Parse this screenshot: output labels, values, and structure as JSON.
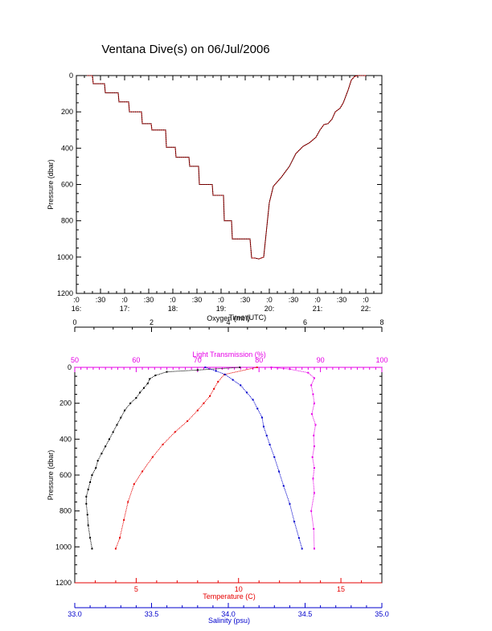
{
  "title": "Ventana Dive(s) on 06/Jul/2006",
  "colors": {
    "temperature": "#e60000",
    "salinity": "#0000cc",
    "light": "#e600e6",
    "oxygen": "#000000",
    "dive_track_line": "#cc0000",
    "dive_track_points": "#000000",
    "axis": "#000000"
  },
  "chart_data": [
    {
      "type": "line",
      "title": "Ventana Dive(s) on 06/Jul/2006",
      "xlabel": "Time (UTC)",
      "ylabel": "Pressure (dbar)",
      "xlim": [
        "16:00",
        "22:20"
      ],
      "ylim": [
        1200,
        0
      ],
      "x_ticks_top": [
        ":0",
        ":30",
        ":0",
        ":30",
        ":0",
        ":30",
        ":0",
        ":30",
        ":0",
        ":30",
        ":0",
        ":30",
        ":0"
      ],
      "x_ticks_bottom": [
        "16:",
        "17:",
        "18:",
        "19:",
        "20:",
        "21:",
        "22:"
      ],
      "y_ticks": [
        "0",
        "200",
        "400",
        "600",
        "800",
        "1000",
        "1200"
      ],
      "series": [
        {
          "x": [
            "16:13",
            "16:20",
            "16:21",
            "16:35",
            "16:36",
            "16:52",
            "16:53",
            "17:05",
            "17:06",
            "17:21",
            "17:22",
            "17:33",
            "17:34",
            "17:51",
            "17:52",
            "18:03",
            "18:04",
            "18:20",
            "18:21",
            "18:32",
            "18:33",
            "18:49",
            "18:50",
            "19:03",
            "19:04",
            "19:13",
            "19:14",
            "19:36",
            "19:38",
            "19:42",
            "19:47",
            "19:53",
            "20:00",
            "20:05",
            "20:15",
            "20:25",
            "20:33",
            "20:42",
            "20:50",
            "20:58",
            "21:03",
            "21:08",
            "21:13",
            "21:18",
            "21:22",
            "21:28",
            "21:32",
            "21:38",
            "21:42",
            "21:46",
            "21:50",
            "22:00"
          ],
          "y": [
            0,
            0,
            45,
            45,
            95,
            95,
            145,
            145,
            200,
            200,
            265,
            265,
            300,
            300,
            395,
            395,
            450,
            450,
            500,
            500,
            600,
            600,
            660,
            660,
            800,
            800,
            900,
            900,
            1005,
            1005,
            1010,
            1000,
            700,
            610,
            560,
            500,
            430,
            390,
            370,
            340,
            300,
            270,
            265,
            240,
            200,
            180,
            150,
            80,
            25,
            5,
            0,
            0
          ]
        }
      ]
    },
    {
      "type": "scatter",
      "ylabel": "Pressure (dbar)",
      "ylim": [
        1200,
        0
      ],
      "y_ticks": [
        "0",
        "200",
        "400",
        "600",
        "800",
        "1000",
        "1200"
      ],
      "axes": {
        "oxygen": {
          "label": "Oxygen (ml/l)",
          "range": [
            0,
            8
          ],
          "ticks": [
            "0",
            "2",
            "4",
            "6",
            "8"
          ]
        },
        "light": {
          "label": "Light Transmission (%)",
          "range": [
            50,
            100
          ],
          "ticks": [
            "50",
            "60",
            "70",
            "80",
            "90",
            "100"
          ]
        },
        "temperature": {
          "label": "Temperature (C)",
          "range": [
            2,
            17
          ],
          "ticks": [
            "5",
            "10",
            "15"
          ]
        },
        "salinity": {
          "label": "Salinity (psu)",
          "range": [
            33.0,
            35.0
          ],
          "ticks": [
            "33.0",
            "33.5",
            "34.0",
            "34.5",
            "35.0"
          ]
        }
      },
      "series": [
        {
          "name": "Oxygen (ml/l)",
          "x": [
            4.3,
            3.2,
            2.4,
            2.1,
            1.95,
            1.9,
            1.8,
            1.7,
            1.6,
            1.45,
            1.3,
            1.2,
            1.1,
            1.0,
            0.9,
            0.8,
            0.7,
            0.6,
            0.55,
            0.45,
            0.4,
            0.35,
            0.3,
            0.3,
            0.33,
            0.35,
            0.4,
            0.45
          ],
          "y": [
            0,
            15,
            25,
            45,
            65,
            90,
            115,
            140,
            170,
            200,
            240,
            280,
            320,
            360,
            400,
            440,
            480,
            520,
            560,
            600,
            640,
            680,
            720,
            760,
            820,
            880,
            950,
            1010
          ]
        },
        {
          "name": "Light Transmission (%)",
          "x": [
            82,
            85,
            88,
            89,
            88.5,
            88.8,
            89,
            88.6,
            89.2,
            88.9,
            89,
            88.7,
            89,
            88.8,
            89,
            88.5,
            88.9,
            89
          ],
          "y": [
            0,
            10,
            30,
            60,
            100,
            150,
            200,
            260,
            320,
            380,
            440,
            500,
            560,
            620,
            700,
            800,
            900,
            1010
          ]
        },
        {
          "name": "Temperature (C)",
          "x": [
            10.9,
            9.3,
            9.0,
            8.8,
            8.6,
            8.3,
            8.0,
            7.5,
            6.9,
            6.3,
            5.8,
            5.3,
            4.9,
            4.6,
            4.4,
            4.2,
            4.0
          ],
          "y": [
            0,
            40,
            80,
            120,
            160,
            200,
            240,
            300,
            360,
            430,
            500,
            580,
            650,
            750,
            850,
            950,
            1010
          ]
        },
        {
          "name": "Salinity (psu)",
          "x": [
            33.85,
            33.92,
            33.98,
            34.03,
            34.08,
            34.12,
            34.16,
            34.19,
            34.22,
            34.23,
            34.25,
            34.27,
            34.3,
            34.33,
            34.36,
            34.4,
            34.43,
            34.46,
            34.48
          ],
          "y": [
            0,
            20,
            40,
            70,
            100,
            140,
            180,
            230,
            280,
            330,
            380,
            430,
            500,
            580,
            660,
            760,
            860,
            950,
            1010
          ]
        }
      ]
    }
  ]
}
